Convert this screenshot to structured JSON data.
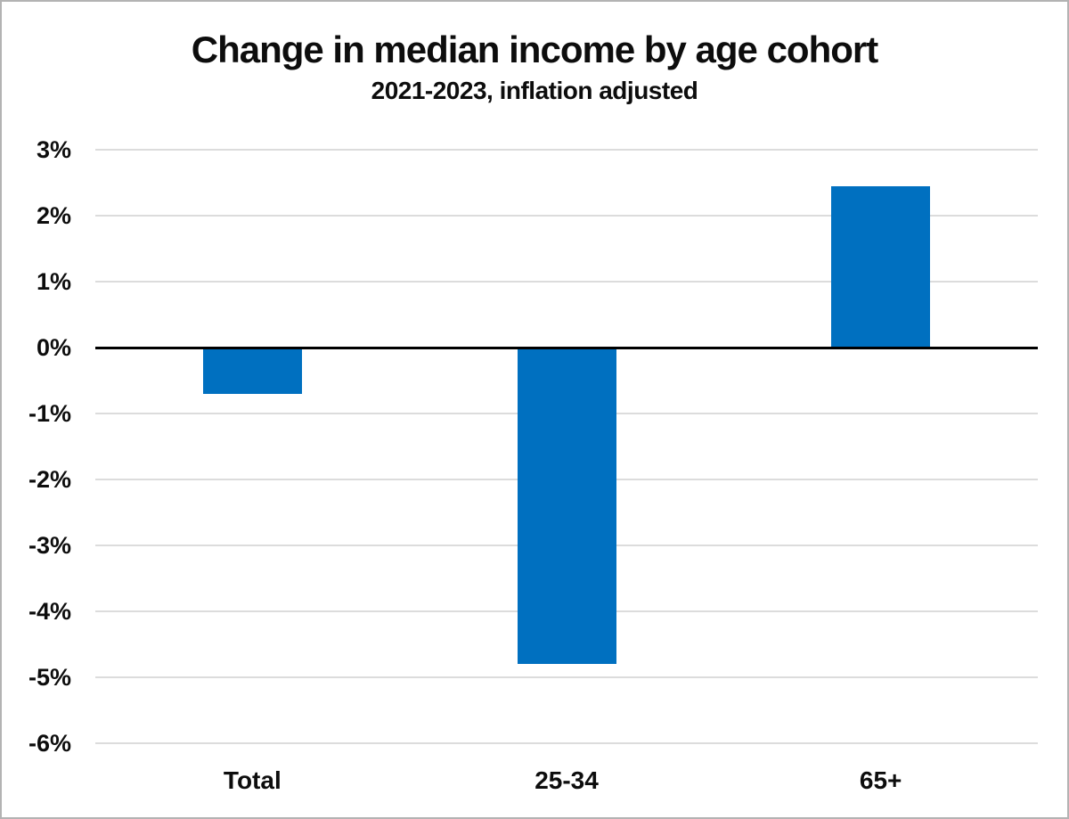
{
  "chart_data": {
    "type": "bar",
    "title": "Change in median income by age cohort",
    "subtitle": "2021-2023, inflation adjusted",
    "categories": [
      "Total",
      "25-34",
      "65+"
    ],
    "values": [
      -0.7,
      -4.8,
      2.45
    ],
    "value_unit": "%",
    "xlabel": "",
    "ylabel": "",
    "ylim": [
      -6,
      3
    ],
    "ytick_step": 1,
    "ytick_labels": [
      "3%",
      "2%",
      "1%",
      "0%",
      "-1%",
      "-2%",
      "-3%",
      "-4%",
      "-5%",
      "-6%"
    ],
    "grid": true,
    "legend": false,
    "bar_color": "#0070C0",
    "gridline_color": "#dcdcdc",
    "zero_line_color": "#000000",
    "text_color": "#0d0d0d",
    "background_color": "#ffffff"
  }
}
